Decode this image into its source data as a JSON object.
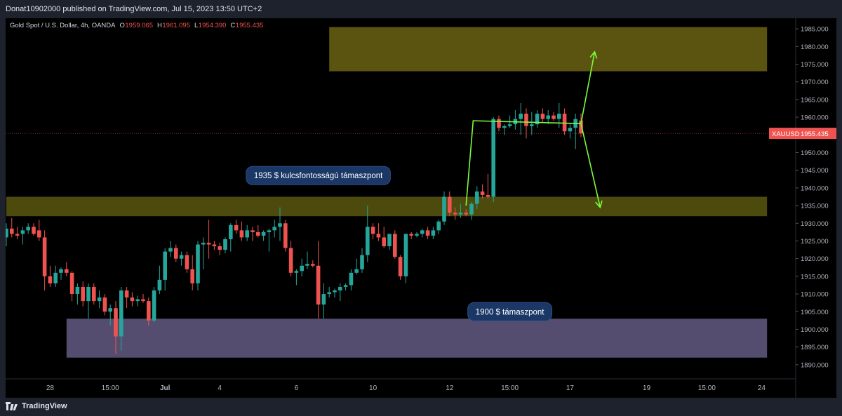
{
  "header": {
    "published": "Donat10902000 published on TradingView.com, Jul 15, 2023 13:50 UTC+2"
  },
  "footer": {
    "brand": "TradingView"
  },
  "colors": {
    "background": "#000000",
    "frame": "#1e222d",
    "up": "#26a69a",
    "down": "#ef5350",
    "resistance_zone": "#5a5410",
    "support_zone_1935": "#4d4a0e",
    "support_zone_1900": "#544d70",
    "arrows": "#7cfc3c",
    "callout": "#1a3766"
  },
  "chart_data": {
    "type": "candlestick",
    "symbol_info": {
      "name": "Gold Spot / U.S. Dollar, 4h, OANDA",
      "open_label": "O",
      "open": "1959.065",
      "high_label": "H",
      "high": "1961.095",
      "low_label": "L",
      "low": "1954.390",
      "close_label": "C",
      "close": "1955.435"
    },
    "y_axis": {
      "range": [
        1886,
        1988
      ],
      "ticks": [
        "1890.000",
        "1895.000",
        "1900.000",
        "1905.000",
        "1910.000",
        "1915.000",
        "1920.000",
        "1925.000",
        "1930.000",
        "1935.000",
        "1940.000",
        "1945.000",
        "1950.000",
        "1955.000",
        "1960.000",
        "1965.000",
        "1970.000",
        "1975.000",
        "1980.000",
        "1985.000"
      ]
    },
    "x_axis": {
      "ticks": [
        {
          "label": "28",
          "bar": 8
        },
        {
          "label": "15:00",
          "bar": 19
        },
        {
          "label": "Jul",
          "bar": 29
        },
        {
          "label": "4",
          "bar": 39
        },
        {
          "label": "6",
          "bar": 53
        },
        {
          "label": "10",
          "bar": 67
        },
        {
          "label": "12",
          "bar": 81
        },
        {
          "label": "15:00",
          "bar": 92
        },
        {
          "label": "17",
          "bar": 103
        },
        {
          "label": "19",
          "bar": 117
        },
        {
          "label": "15:00",
          "bar": 128
        },
        {
          "label": "24",
          "bar": 138
        }
      ]
    },
    "price_label": {
      "symbol": "XAUUSD",
      "value": "1955.435",
      "price": 1955.435
    },
    "zones": [
      {
        "name": "resistance",
        "from_bar": 59,
        "to_bar": 139,
        "low": 1973,
        "high": 1985.5
      },
      {
        "name": "support-1935",
        "from_bar": 0,
        "to_bar": 139,
        "low": 1932,
        "high": 1937.5
      },
      {
        "name": "support-1900",
        "from_bar": 11,
        "to_bar": 139,
        "low": 1892,
        "high": 1903
      }
    ],
    "annotations": [
      {
        "text": "1935 $  kulcsfontosságú támaszpont",
        "bar": 57,
        "price": 1943.5
      },
      {
        "text": "1900 $ támaszpont",
        "bar": 92,
        "price": 1905
      }
    ],
    "projection": {
      "path": [
        [
          84,
          1935
        ],
        [
          85.3,
          1959
        ],
        [
          105,
          1958.2
        ]
      ],
      "up": [
        [
          105,
          1958.2
        ],
        [
          107.5,
          1978.5
        ]
      ],
      "down": [
        [
          105,
          1958.2
        ],
        [
          108.5,
          1934.5
        ]
      ]
    },
    "candles": [
      [
        1926.0,
        1930.0,
        1923.5,
        1928.5
      ],
      [
        1928.5,
        1931.5,
        1926.0,
        1927.0
      ],
      [
        1927.0,
        1929.0,
        1925.5,
        1926.5
      ],
      [
        1927.0,
        1929.0,
        1924.0,
        1928.0
      ],
      [
        1928.0,
        1930.0,
        1927.0,
        1929.0
      ],
      [
        1929.0,
        1930.0,
        1926.5,
        1927.0
      ],
      [
        1928.0,
        1931.0,
        1925.0,
        1926.0
      ],
      [
        1926.0,
        1928.0,
        1911.0,
        1915.0
      ],
      [
        1915.0,
        1918.0,
        1912.0,
        1913.0
      ],
      [
        1913.0,
        1918.0,
        1912.0,
        1916.0
      ],
      [
        1916.0,
        1917.5,
        1914.0,
        1917.0
      ],
      [
        1917.0,
        1919.0,
        1915.0,
        1916.0
      ],
      [
        1916.0,
        1916.5,
        1908.0,
        1910.0
      ],
      [
        1910.0,
        1913.0,
        1907.0,
        1912.0
      ],
      [
        1912.0,
        1913.5,
        1906.5,
        1908.0
      ],
      [
        1908.0,
        1913.0,
        1903.0,
        1912.0
      ],
      [
        1912.0,
        1913.0,
        1907.0,
        1908.0
      ],
      [
        1908.0,
        1911.0,
        1906.0,
        1909.0
      ],
      [
        1909.0,
        1910.0,
        1904.0,
        1905.0
      ],
      [
        1905.0,
        1907.0,
        1901.0,
        1906.0
      ],
      [
        1906.0,
        1908.0,
        1893.0,
        1898.0
      ],
      [
        1898.0,
        1912.0,
        1894.0,
        1911.0
      ],
      [
        1911.0,
        1912.0,
        1906.0,
        1909.0
      ],
      [
        1909.0,
        1910.5,
        1906.5,
        1908.0
      ],
      [
        1908.0,
        1909.5,
        1906.5,
        1908.5
      ],
      [
        1908.5,
        1910.0,
        1907.5,
        1908.0
      ],
      [
        1908.0,
        1909.0,
        1901.0,
        1902.5
      ],
      [
        1902.5,
        1912.0,
        1902.0,
        1911.0
      ],
      [
        1911.0,
        1918.0,
        1910.0,
        1914.0
      ],
      [
        1914.0,
        1923.0,
        1911.0,
        1922.0
      ],
      [
        1922.0,
        1925.0,
        1920.5,
        1923.0
      ],
      [
        1923.0,
        1924.0,
        1919.0,
        1920.0
      ],
      [
        1920.0,
        1922.0,
        1918.0,
        1921.0
      ],
      [
        1921.0,
        1922.0,
        1916.0,
        1917.0
      ],
      [
        1917.0,
        1921.0,
        1911.0,
        1913.0
      ],
      [
        1913.0,
        1925.0,
        1911.0,
        1924.0
      ],
      [
        1924.0,
        1926.0,
        1917.0,
        1924.5
      ],
      [
        1924.5,
        1931.0,
        1920.0,
        1924.0
      ],
      [
        1924.0,
        1925.0,
        1922.5,
        1923.5
      ],
      [
        1923.5,
        1924.5,
        1921.0,
        1922.5
      ],
      [
        1922.5,
        1926.0,
        1921.5,
        1925.5
      ],
      [
        1925.5,
        1930.0,
        1922.0,
        1929.5
      ],
      [
        1929.5,
        1931.0,
        1927.0,
        1928.0
      ],
      [
        1928.0,
        1930.5,
        1925.0,
        1926.0
      ],
      [
        1926.0,
        1929.5,
        1925.0,
        1928.0
      ],
      [
        1928.0,
        1929.0,
        1925.0,
        1927.5
      ],
      [
        1927.5,
        1929.5,
        1926.0,
        1926.5
      ],
      [
        1926.5,
        1928.0,
        1925.0,
        1927.5
      ],
      [
        1927.5,
        1928.5,
        1922.0,
        1928.0
      ],
      [
        1928.0,
        1931.0,
        1926.0,
        1929.0
      ],
      [
        1929.0,
        1934.5,
        1925.0,
        1930.0
      ],
      [
        1930.0,
        1931.0,
        1922.0,
        1923.0
      ],
      [
        1923.0,
        1925.0,
        1915.0,
        1916.0
      ],
      [
        1916.0,
        1917.0,
        1912.5,
        1916.5
      ],
      [
        1916.5,
        1920.0,
        1915.0,
        1918.0
      ],
      [
        1918.0,
        1922.0,
        1917.0,
        1918.5
      ],
      [
        1918.5,
        1919.5,
        1917.5,
        1918.0
      ],
      [
        1918.0,
        1925.0,
        1903.0,
        1907.0
      ],
      [
        1907.0,
        1913.0,
        1903.0,
        1910.0
      ],
      [
        1910.0,
        1912.0,
        1909.0,
        1910.5
      ],
      [
        1910.5,
        1911.5,
        1909.0,
        1911.0
      ],
      [
        1911.0,
        1913.0,
        1908.0,
        1912.0
      ],
      [
        1912.0,
        1913.0,
        1911.0,
        1912.5
      ],
      [
        1912.5,
        1917.0,
        1911.0,
        1916.0
      ],
      [
        1916.0,
        1920.0,
        1915.5,
        1917.0
      ],
      [
        1917.0,
        1923.0,
        1916.0,
        1921.0
      ],
      [
        1921.0,
        1935.0,
        1919.0,
        1929.0
      ],
      [
        1929.0,
        1930.0,
        1925.5,
        1927.0
      ],
      [
        1927.0,
        1930.0,
        1925.0,
        1926.0
      ],
      [
        1926.0,
        1929.0,
        1923.0,
        1923.5
      ],
      [
        1923.5,
        1927.0,
        1922.5,
        1927.0
      ],
      [
        1927.0,
        1928.0,
        1920.0,
        1920.5
      ],
      [
        1920.5,
        1921.0,
        1914.0,
        1915.0
      ],
      [
        1915.0,
        1927.0,
        1913.0,
        1927.0
      ],
      [
        1927.0,
        1927.5,
        1925.5,
        1926.5
      ],
      [
        1926.5,
        1927.5,
        1926.0,
        1927.0
      ],
      [
        1927.0,
        1928.5,
        1926.0,
        1928.0
      ],
      [
        1928.0,
        1929.0,
        1925.5,
        1926.5
      ],
      [
        1926.5,
        1929.0,
        1925.5,
        1928.0
      ],
      [
        1928.0,
        1931.0,
        1927.0,
        1930.5
      ],
      [
        1930.5,
        1939.0,
        1929.5,
        1937.5
      ],
      [
        1937.5,
        1939.0,
        1932.0,
        1933.0
      ],
      [
        1933.0,
        1934.5,
        1931.0,
        1932.5
      ],
      [
        1932.5,
        1935.5,
        1931.5,
        1933.0
      ],
      [
        1933.0,
        1934.0,
        1932.0,
        1932.5
      ],
      [
        1932.5,
        1936.0,
        1931.0,
        1935.5
      ],
      [
        1935.5,
        1940.5,
        1934.0,
        1939.0
      ],
      [
        1939.0,
        1941.0,
        1937.0,
        1938.0
      ],
      [
        1938.0,
        1944.0,
        1937.0,
        1937.5
      ],
      [
        1937.5,
        1960.0,
        1936.0,
        1959.5
      ],
      [
        1959.5,
        1960.5,
        1956.0,
        1957.0
      ],
      [
        1957.0,
        1958.0,
        1955.0,
        1957.5
      ],
      [
        1957.5,
        1960.5,
        1957.0,
        1958.0
      ],
      [
        1958.0,
        1962.0,
        1956.5,
        1959.5
      ],
      [
        1959.5,
        1964.0,
        1955.0,
        1961.0
      ],
      [
        1961.0,
        1962.5,
        1954.0,
        1957.5
      ],
      [
        1957.5,
        1961.5,
        1955.0,
        1958.0
      ],
      [
        1958.0,
        1962.0,
        1957.0,
        1961.0
      ],
      [
        1961.0,
        1962.5,
        1958.5,
        1959.5
      ],
      [
        1959.5,
        1962.0,
        1958.0,
        1960.5
      ],
      [
        1960.5,
        1961.5,
        1959.0,
        1959.5
      ],
      [
        1959.5,
        1964.0,
        1957.0,
        1961.0
      ],
      [
        1961.0,
        1962.5,
        1955.0,
        1956.0
      ],
      [
        1956.0,
        1958.0,
        1954.0,
        1957.0
      ],
      [
        1957.0,
        1961.0,
        1951.0,
        1959.5
      ],
      [
        1959.065,
        1961.095,
        1954.39,
        1955.435
      ]
    ]
  }
}
